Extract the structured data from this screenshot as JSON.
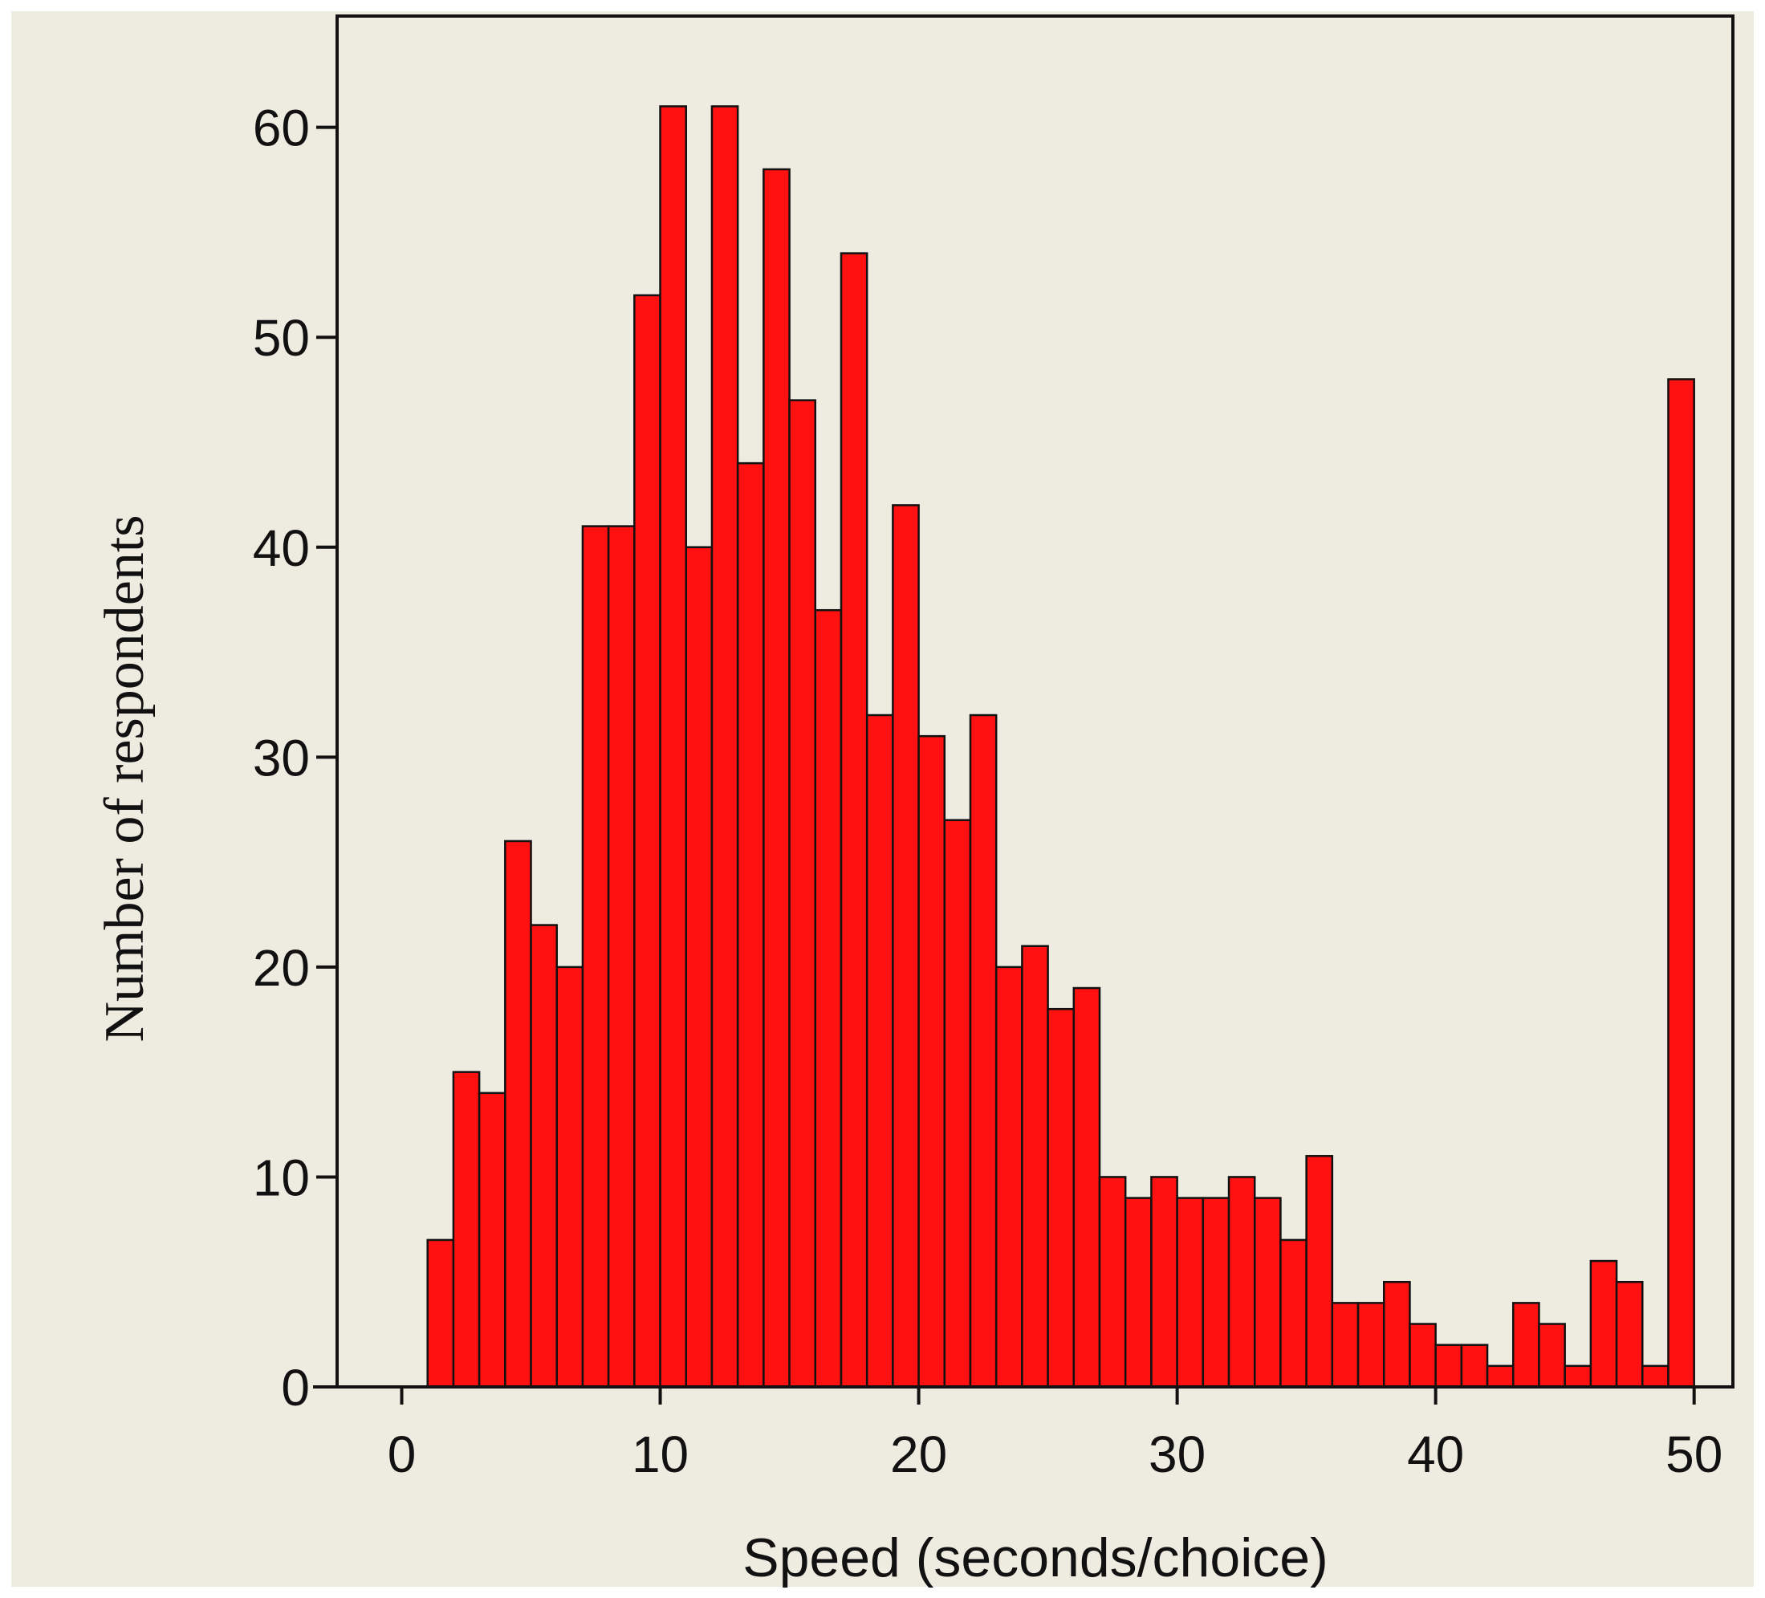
{
  "chart_data": {
    "type": "bar",
    "xlabel": "Speed (seconds/choice)",
    "ylabel": "Number of respondents",
    "xlim": [
      -2.5,
      51.5
    ],
    "ylim": [
      0,
      65.3
    ],
    "x_ticks": [
      0,
      10,
      20,
      30,
      40,
      50
    ],
    "y_ticks": [
      0,
      10,
      20,
      30,
      40,
      50,
      60
    ],
    "bin_width": 1,
    "bin_starts": [
      1,
      2,
      3,
      4,
      5,
      6,
      7,
      8,
      9,
      10,
      11,
      12,
      13,
      14,
      15,
      16,
      17,
      18,
      19,
      20,
      21,
      22,
      23,
      24,
      25,
      26,
      27,
      28,
      29,
      30,
      31,
      32,
      33,
      34,
      35,
      36,
      37,
      38,
      39,
      40,
      41,
      42,
      43,
      44,
      45,
      46,
      47,
      48,
      49
    ],
    "values": [
      7,
      15,
      14,
      26,
      22,
      20,
      41,
      41,
      52,
      61,
      40,
      61,
      44,
      58,
      47,
      37,
      54,
      32,
      42,
      31,
      27,
      32,
      20,
      21,
      18,
      19,
      10,
      9,
      10,
      9,
      9,
      10,
      9,
      7,
      11,
      4,
      4,
      5,
      3,
      2,
      2,
      1,
      4,
      3,
      1,
      6,
      5,
      1,
      48
    ],
    "grid": false,
    "legend": "none",
    "colors": {
      "bar_fill": "#ff1111",
      "bar_stroke": "#111111",
      "plot_background": "#eeebe1",
      "page_background": "#eeebe1",
      "axis": "#111111"
    }
  }
}
